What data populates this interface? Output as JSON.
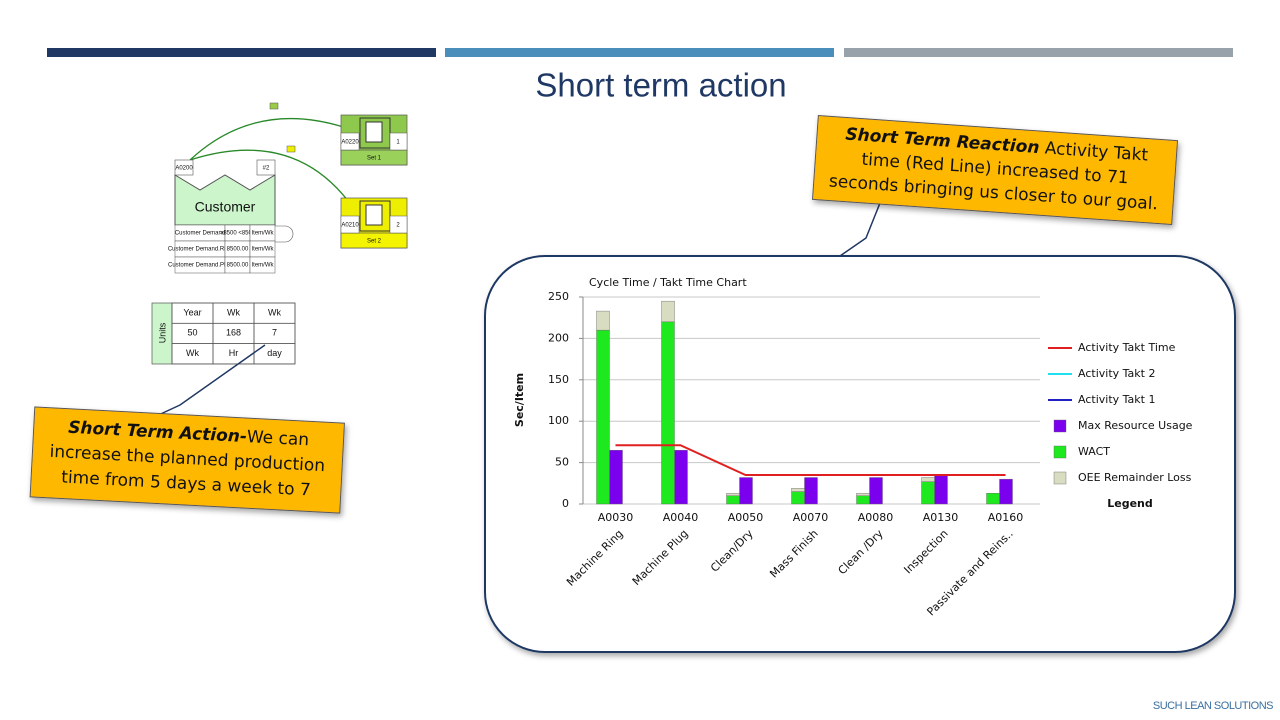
{
  "title": "Short term action",
  "vsm": {
    "customer": "Customer",
    "customer_id": "A0200",
    "customer_tag": "#2",
    "rows": [
      [
        "Customer Demand",
        ">8500 <8500",
        "Item/Wk"
      ],
      [
        "Customer Demand.Ring",
        "8500.00",
        "Item/Wk"
      ],
      [
        "Customer Demand.Plug",
        "8500.00",
        "Item/Wk"
      ]
    ],
    "sets": [
      {
        "id": "A0220",
        "count": "1",
        "label": "Set 1"
      },
      {
        "id": "A0210",
        "count": "2",
        "label": "Set 2"
      }
    ]
  },
  "units": {
    "label": "Units",
    "rows": [
      [
        "Year",
        "Wk",
        "Wk"
      ],
      [
        50,
        168,
        7
      ],
      [
        "Wk",
        "Hr",
        "day"
      ]
    ]
  },
  "callouts": [
    {
      "bold": "Short Term Reaction",
      "lines": [
        " Activity Takt",
        "time (Red Line) increased to 71",
        "seconds bringing us closer to our goal."
      ]
    },
    {
      "bold": "Short Term Action-",
      "lines": [
        "We  can",
        "increase the planned production",
        "time from 5 days a week to  7"
      ]
    }
  ],
  "brand": "SUCH LEAN SOLUTIONS",
  "chart_data": {
    "type": "bar",
    "title": "Cycle Time / Takt Time Chart",
    "y_label": "Sec/Item",
    "categories": [
      "A0030",
      "A0040",
      "A0050",
      "A0070",
      "A0080",
      "A0130",
      "A0160"
    ],
    "category_names": [
      "Machine Ring",
      "Machine Plug",
      "Clean/Dry",
      "Mass Finish",
      "Clean /Dry",
      "Inspection",
      "Passivate and Reins.."
    ],
    "series": [
      {
        "name": "Activity Takt Time",
        "type": "line",
        "color": "#e02020",
        "values": [
          71,
          71,
          35,
          35,
          35,
          35,
          35
        ]
      },
      {
        "name": "Activity Takt 2",
        "type": "line",
        "color": "#20e0f0",
        "values": [
          null,
          null,
          null,
          null,
          null,
          null,
          null
        ]
      },
      {
        "name": "Activity Takt 1",
        "type": "line",
        "color": "#2020c0",
        "values": [
          null,
          null,
          null,
          null,
          null,
          null,
          null
        ]
      },
      {
        "name": "Max Resource Usage",
        "type": "bar",
        "stack": "resource",
        "color": "#7b00ee",
        "values": [
          65,
          65,
          32,
          32,
          32,
          34,
          30
        ]
      },
      {
        "name": "WACT",
        "type": "bar",
        "stack": "cycle",
        "color": "#1ee81e",
        "values": [
          210,
          220,
          10,
          15,
          10,
          27,
          13
        ]
      },
      {
        "name": "OEE Remainder Loss",
        "type": "bar",
        "stack": "cycle",
        "color": "#d8dcc0",
        "values": [
          23,
          25,
          3,
          4,
          3,
          5,
          0
        ]
      }
    ],
    "legend_title": "Legend",
    "legend": "right",
    "ylim": [
      0,
      250
    ],
    "yticks": [
      0,
      50,
      100,
      150,
      200,
      250
    ],
    "grid": true
  }
}
